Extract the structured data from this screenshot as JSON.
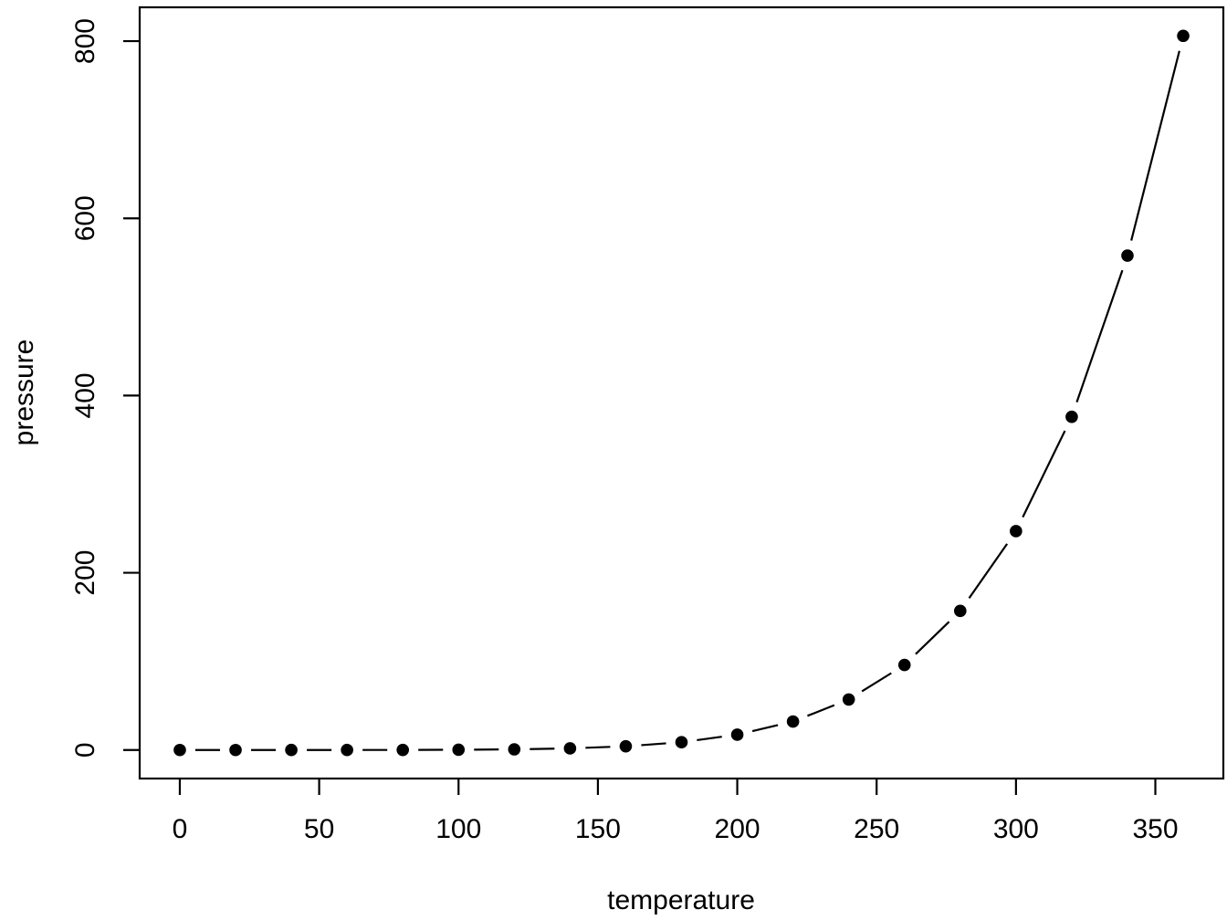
{
  "chart_data": {
    "type": "line",
    "title": "",
    "xlabel": "temperature",
    "ylabel": "pressure",
    "x": [
      0,
      20,
      40,
      60,
      80,
      100,
      120,
      140,
      160,
      180,
      200,
      220,
      240,
      260,
      280,
      300,
      320,
      340,
      360
    ],
    "y": [
      0.0002,
      0.0012,
      0.006,
      0.03,
      0.09,
      0.27,
      0.75,
      1.85,
      4.2,
      8.8,
      17.3,
      32.1,
      57.0,
      96.0,
      157.0,
      247.0,
      376.0,
      558.0,
      806.0
    ],
    "x_ticks": [
      0,
      50,
      100,
      150,
      200,
      250,
      300,
      350
    ],
    "y_ticks": [
      0,
      200,
      400,
      600,
      800
    ],
    "xlim": [
      -14.4,
      374.4
    ],
    "ylim": [
      -32.2,
      838.2
    ],
    "point_style": "filled-circle",
    "line_style": "segments-with-gaps-around-points",
    "legend": "none",
    "grid": "off",
    "color": "#000000",
    "background": "#ffffff"
  }
}
